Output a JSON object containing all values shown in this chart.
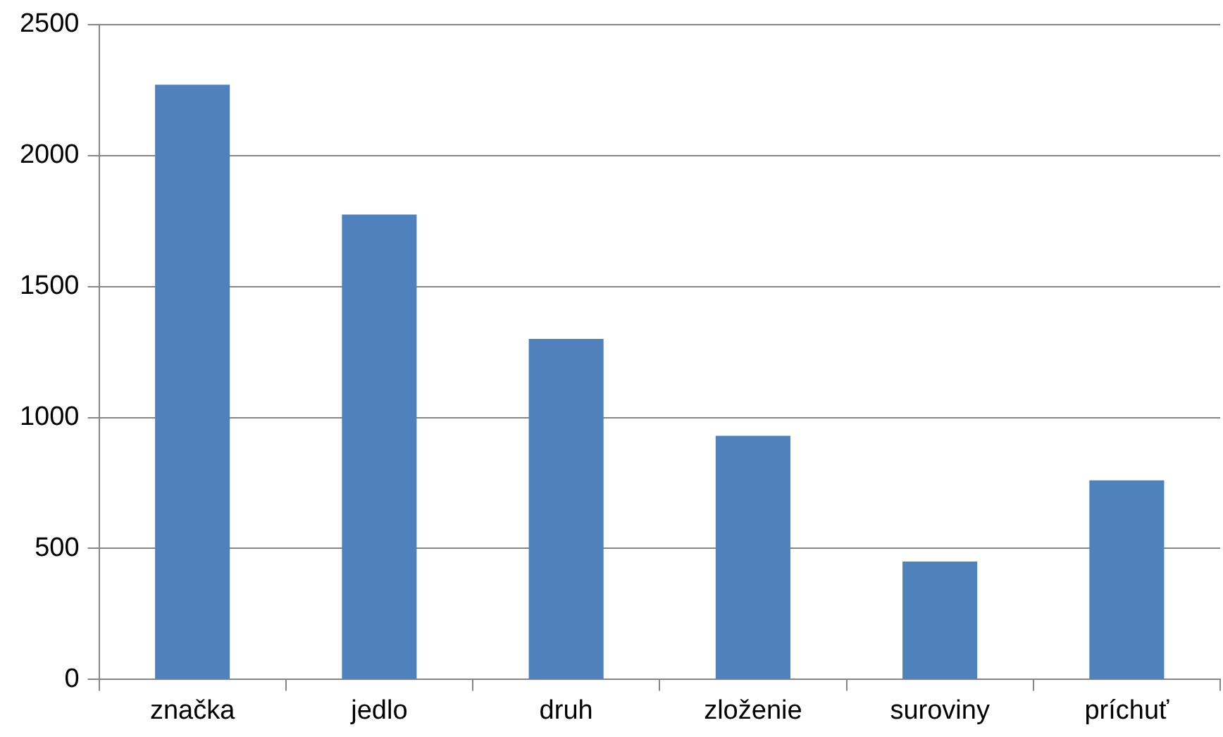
{
  "chart_data": {
    "type": "bar",
    "categories": [
      "značka",
      "jedlo",
      "druh",
      "zloženie",
      "suroviny",
      "príchuť"
    ],
    "values": [
      2270,
      1775,
      1300,
      930,
      450,
      760
    ],
    "color": "#4f81bd",
    "ylim": [
      0,
      2500
    ],
    "yticks": [
      0,
      500,
      1000,
      1500,
      2000,
      2500
    ],
    "grid": "y"
  }
}
